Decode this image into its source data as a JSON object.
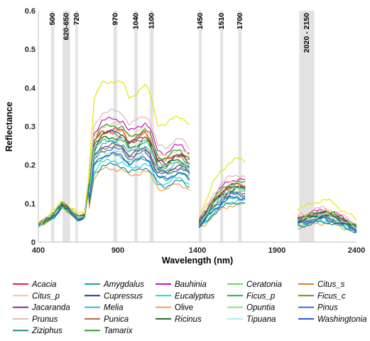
{
  "chart_data": {
    "type": "line",
    "xlabel": "Wavelength (nm)",
    "ylabel": "Reflectance",
    "xlim": [
      400,
      2400
    ],
    "ylim": [
      0,
      0.6
    ],
    "x_ticks": [
      "400",
      "900",
      "1400",
      "1900",
      "2400"
    ],
    "y_ticks": [
      "0",
      "0.1",
      "0.2",
      "0.3",
      "0.4",
      "0.5",
      "0.6"
    ],
    "bands": [
      {
        "label": "500",
        "from": 480,
        "to": 500
      },
      {
        "label": "620-650",
        "from": 552,
        "to": 600
      },
      {
        "label": "720",
        "from": 633,
        "to": 648
      },
      {
        "label": "970",
        "from": 872,
        "to": 895
      },
      {
        "label": "1040",
        "from": 1003,
        "to": 1025
      },
      {
        "label": "1100",
        "from": 1100,
        "to": 1125
      },
      {
        "label": "1450",
        "from": 1409,
        "to": 1427
      },
      {
        "label": "1510",
        "from": 1543,
        "to": 1562
      },
      {
        "label": "1700",
        "from": 1657,
        "to": 1678
      },
      {
        "label": "2020 - 2150",
        "from": 2040,
        "to": 2135
      }
    ],
    "x_segments": [
      [
        400,
        1350
      ],
      [
        1410,
        1700
      ],
      [
        2030,
        2400
      ]
    ],
    "series": [
      {
        "name": "Acacia",
        "italic": true,
        "color": "#e8212b",
        "scale": 0.86
      },
      {
        "name": "Amygdalus",
        "italic": true,
        "color": "#17a99a",
        "scale": 0.66
      },
      {
        "name": "Bauhinia",
        "italic": true,
        "color": "#c514c6",
        "scale": 0.94
      },
      {
        "name": "Ceratonia",
        "italic": true,
        "color": "#6fd36a",
        "scale": 0.8
      },
      {
        "name": "Citus_s",
        "italic": true,
        "color": "#e87c1e",
        "scale": 0.85
      },
      {
        "name": "Citus_p",
        "italic": true,
        "color": "#f4c98a",
        "scale": 0.9
      },
      {
        "name": "Cupressus",
        "italic": true,
        "color": "#1f3d85",
        "scale": 0.84
      },
      {
        "name": "Eucalyptus",
        "italic": true,
        "color": "#17d6e0",
        "scale": 0.62
      },
      {
        "name": "Ficus_p",
        "italic": true,
        "color": "#2fa84f",
        "scale": 0.78
      },
      {
        "name": "Ficus_c",
        "italic": true,
        "color": "#7a8a2c",
        "scale": 0.73
      },
      {
        "name": "Jacaranda",
        "italic": true,
        "color": "#7b2d9b",
        "scale": 0.74
      },
      {
        "name": "Melia",
        "italic": true,
        "color": "#3bb7c9",
        "scale": 0.76
      },
      {
        "name": "Olive",
        "italic": false,
        "color": "#f0a044",
        "scale": 0.56
      },
      {
        "name": "Opuntia",
        "italic": true,
        "color": "#8fe28a",
        "scale": 0.69
      },
      {
        "name": "Pinus",
        "italic": true,
        "color": "#3a6fc4",
        "scale": 0.71
      },
      {
        "name": "Prunus",
        "italic": true,
        "color": "#e8b4b4",
        "scale": 1.0
      },
      {
        "name": "Punica",
        "italic": true,
        "color": "#a86a3c",
        "scale": 0.83
      },
      {
        "name": "Ricinus",
        "italic": true,
        "color": "#1d6e1d",
        "scale": 0.8
      },
      {
        "name": "Tipuana",
        "italic": true,
        "color": "#a9ede8",
        "scale": 0.79
      },
      {
        "name": "Washingtonia",
        "italic": true,
        "color": "#1e56d6",
        "scale": 0.67
      },
      {
        "name": "Ziziphus",
        "italic": true,
        "color": "#1f8a8a",
        "scale": 0.59
      },
      {
        "name": "Tamarix",
        "italic": true,
        "color": "#2f9e2f",
        "scale": 0.89
      },
      {
        "name": "_yellow",
        "italic": true,
        "color": "#e6e600",
        "scale": 1.23,
        "legend": false
      }
    ]
  }
}
